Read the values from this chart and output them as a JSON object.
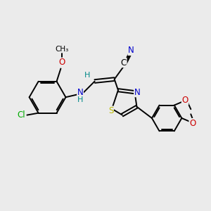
{
  "background_color": "#ebebeb",
  "bond_color": "#000000",
  "atom_colors": {
    "N": "#0000cc",
    "O": "#cc0000",
    "S": "#bbbb00",
    "Cl": "#00aa00",
    "C": "#000000",
    "H": "#008888"
  },
  "figsize": [
    3.0,
    3.0
  ],
  "dpi": 100
}
